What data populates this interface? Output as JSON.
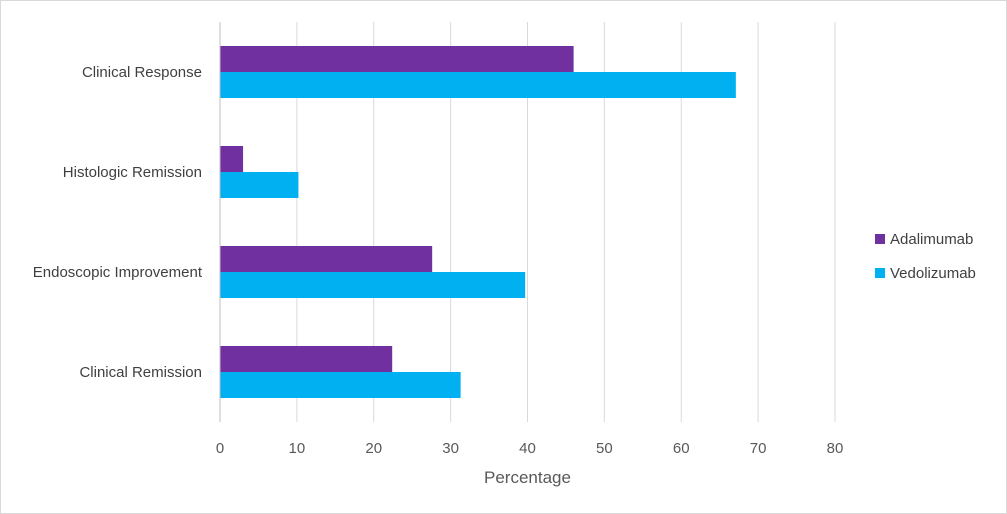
{
  "chart_data": {
    "type": "bar",
    "orientation": "horizontal",
    "categories": [
      "Clinical Response",
      "Histologic Remission",
      "Endoscopic Improvement",
      "Clinical Remission"
    ],
    "series": [
      {
        "name": "Adalimumab",
        "color": "#7030a0",
        "values": [
          46,
          3,
          27.6,
          22.4
        ]
      },
      {
        "name": "Vedolizumab",
        "color": "#00b0f0",
        "values": [
          67.1,
          10.2,
          39.7,
          31.3
        ]
      }
    ],
    "title": "",
    "xlabel": "Percentage",
    "ylabel": "",
    "xlim": [
      0,
      80
    ],
    "xticks": [
      "0",
      "10",
      "20",
      "30",
      "40",
      "50",
      "60",
      "70",
      "80"
    ],
    "grid": true,
    "legend_position": "right"
  }
}
